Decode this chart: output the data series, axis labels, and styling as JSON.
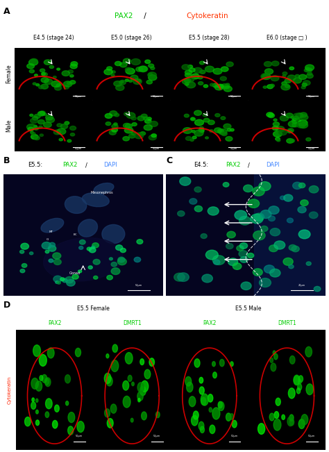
{
  "panel_A_title": "PAX2 / Cytokeratin",
  "panel_A_title_pax2_color": "#00cc00",
  "panel_A_title_cyto_color": "#ff3300",
  "panel_A_col_headers": [
    "E4.5 (stage 24)",
    "E5.0 (stage 26)",
    "E5.5 (stage 28)",
    "E6.0 (stage □ )"
  ],
  "panel_A_row_headers": [
    "Female",
    "Male"
  ],
  "panel_B_title_prefix": "E5.5: ",
  "panel_B_title_pax2": "PAX2",
  "panel_B_title_sep": " / ",
  "panel_B_title_dapi": "DAPI",
  "panel_B_pax2_color": "#00cc00",
  "panel_B_dapi_color": "#4488ff",
  "panel_B_labels": [
    "Mesonephros",
    "MT",
    "Gl",
    "BC",
    "Gonad"
  ],
  "panel_C_title_prefix": "E4.5: ",
  "panel_C_title_pax2": "PAX2",
  "panel_C_title_sep": " / ",
  "panel_C_title_dapi": "DAPI",
  "panel_C_pax2_color": "#00cc00",
  "panel_C_dapi_color": "#4488ff",
  "panel_D_title_female": "E5.5 Female",
  "panel_D_title_male": "E5.5 Male",
  "panel_D_col_labels_female": [
    "PAX2",
    "DMRT1"
  ],
  "panel_D_col_labels_male": [
    "PAX2",
    "DMRT1"
  ],
  "panel_D_row_label": "Cytokeratin",
  "panel_D_pax2_color": "#00cc00",
  "panel_D_dmrt1_color": "#00cc00",
  "panel_D_cyto_color": "#ff2200",
  "bg_color": "#000000",
  "panel_bg": "#111111",
  "header_bg": "#1a1a1a",
  "border_color": "#ffffff",
  "text_color": "#ffffff",
  "label_color": "#cccccc",
  "panel_label_color": "#000000",
  "fig_bg": "#ffffff"
}
